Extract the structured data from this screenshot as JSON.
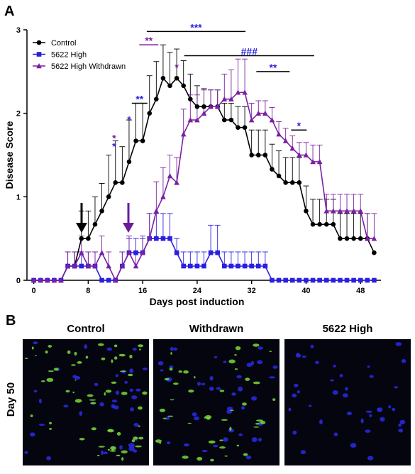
{
  "panel_labels": [
    "A",
    "B"
  ],
  "chart_data": {
    "type": "line",
    "xlabel": "Days post induction",
    "ylabel": "Disease Score",
    "x": [
      0,
      1,
      2,
      3,
      4,
      5,
      6,
      7,
      8,
      9,
      10,
      11,
      12,
      13,
      14,
      15,
      16,
      17,
      18,
      19,
      20,
      21,
      22,
      23,
      24,
      25,
      26,
      27,
      28,
      29,
      30,
      31,
      32,
      33,
      34,
      35,
      36,
      37,
      38,
      39,
      40,
      41,
      42,
      43,
      44,
      45,
      46,
      47,
      48,
      49,
      50
    ],
    "xlim": [
      -1,
      51
    ],
    "xticks": [
      0,
      8,
      16,
      24,
      32,
      40,
      48
    ],
    "ylim": [
      0,
      3
    ],
    "yticks": [
      0,
      1,
      2,
      3
    ],
    "legend": "upper left",
    "series": [
      {
        "name": "Control",
        "color": "#000000",
        "marker": "circle",
        "values": [
          0,
          0,
          0,
          0,
          0,
          0.17,
          0.17,
          0.5,
          0.5,
          0.67,
          0.83,
          1,
          1.17,
          1.17,
          1.42,
          1.67,
          1.67,
          2,
          2.17,
          2.42,
          2.33,
          2.42,
          2.33,
          2.17,
          2.08,
          2.08,
          2.08,
          2.08,
          1.92,
          1.92,
          1.83,
          1.83,
          1.5,
          1.5,
          1.5,
          1.33,
          1.25,
          1.17,
          1.17,
          1.17,
          0.83,
          0.67,
          0.67,
          0.67,
          0.67,
          0.5,
          0.5,
          0.5,
          0.5,
          0.5,
          0.33
        ],
        "errors": [
          0,
          0,
          0,
          0,
          0,
          0.17,
          0.17,
          0.33,
          0.33,
          0.33,
          0.33,
          0.5,
          0.5,
          0.43,
          0.5,
          0.45,
          0.45,
          0.45,
          0.45,
          0.4,
          0.4,
          0.35,
          0.3,
          0.3,
          0.25,
          0.2,
          0.2,
          0.2,
          0.2,
          0.2,
          0.25,
          0.25,
          0.3,
          0.3,
          0.3,
          0.3,
          0.3,
          0.3,
          0.3,
          0.3,
          0.3,
          0.3,
          0.3,
          0.3,
          0.3,
          0.3,
          0.3,
          0.3,
          0.3,
          0.3,
          0
        ]
      },
      {
        "name": "5622 High",
        "color": "#2a1fe0",
        "marker": "square",
        "values": [
          0,
          0,
          0,
          0,
          0,
          0.17,
          0.17,
          0.17,
          0.17,
          0.17,
          0,
          0,
          0,
          0.17,
          0.33,
          0.33,
          0.33,
          0.5,
          0.5,
          0.5,
          0.5,
          0.33,
          0.17,
          0.17,
          0.17,
          0.17,
          0.33,
          0.33,
          0.17,
          0.17,
          0.17,
          0.17,
          0.17,
          0.17,
          0.17,
          0,
          0,
          0,
          0,
          0,
          0,
          0,
          0,
          0,
          0,
          0,
          0,
          0,
          0,
          0,
          0
        ],
        "errors": [
          0,
          0,
          0,
          0,
          0,
          0.17,
          0.17,
          0.17,
          0.17,
          0.17,
          0,
          0,
          0,
          0.17,
          0.17,
          0.17,
          0.17,
          0.3,
          0.3,
          0.3,
          0.3,
          0.17,
          0.17,
          0.17,
          0.17,
          0.17,
          0.33,
          0.33,
          0.17,
          0.17,
          0.17,
          0.17,
          0.17,
          0.17,
          0.17,
          0,
          0,
          0,
          0,
          0,
          0,
          0,
          0,
          0,
          0,
          0,
          0,
          0,
          0,
          0,
          0
        ]
      },
      {
        "name": "5622 High Withdrawn",
        "color": "#7b1fa2",
        "marker": "triangle",
        "values": [
          0,
          0,
          0,
          0,
          0,
          0.17,
          0.17,
          0.33,
          0.17,
          0.17,
          0.33,
          0.17,
          0,
          0.17,
          0.33,
          0.17,
          0.33,
          0.5,
          0.83,
          1,
          1.25,
          1.17,
          1.75,
          1.92,
          1.92,
          2,
          2.08,
          2.08,
          2.17,
          2.17,
          2.25,
          2.25,
          1.92,
          2,
          2,
          1.92,
          1.75,
          1.67,
          1.58,
          1.5,
          1.5,
          1.42,
          1.42,
          0.83,
          0.83,
          0.83,
          0.83,
          0.83,
          0.83,
          0.5,
          0.5
        ],
        "errors": [
          0,
          0,
          0,
          0,
          0,
          0.17,
          0.17,
          0.2,
          0.17,
          0.17,
          0.2,
          0.17,
          0,
          0.17,
          0.2,
          0.17,
          0.2,
          0.3,
          0.35,
          0.35,
          0.25,
          0.3,
          0.3,
          0.3,
          0.3,
          0.3,
          0.2,
          0.2,
          0.3,
          0.35,
          0.4,
          0.4,
          0.2,
          0.15,
          0.15,
          0.15,
          0.15,
          0.15,
          0.15,
          0.15,
          0.15,
          0.2,
          0.2,
          0.2,
          0.2,
          0.2,
          0.2,
          0.2,
          0.2,
          0.3,
          0.3
        ]
      }
    ],
    "annotations": [
      {
        "text": "**",
        "color": "#7b1fa2",
        "bar_color": "#7b1fa2",
        "x": [
          15.5,
          18.3
        ],
        "y": 2.82
      },
      {
        "text": "***",
        "color": "#2a1fe0",
        "bar_color": "#000000",
        "x": [
          16.6,
          31.1
        ],
        "y": 2.98
      },
      {
        "text": "###",
        "color": "#2a1fe0",
        "bar_color": "#000000",
        "x": [
          22.1,
          41.2
        ],
        "y": 2.69
      },
      {
        "text": "**",
        "color": "#2a1fe0",
        "bar_color": "#000000",
        "x": [
          32.7,
          37.6
        ],
        "y": 2.5
      },
      {
        "text": "*",
        "color": "#2a1fe0",
        "bar_color": "#000000",
        "x": [
          37.8,
          40.1
        ],
        "y": 1.8
      },
      {
        "text": "**",
        "color": "#2a1fe0",
        "bar_color": "#000000",
        "x": [
          14.4,
          16.7
        ],
        "y": 2.12
      },
      {
        "text": "*",
        "color": "#2a1fe0",
        "x": 14,
        "y": 1.95
      },
      {
        "text": "*",
        "color": "#7b1fa2",
        "x": 21,
        "y": 2.58
      },
      {
        "text": "*",
        "color": "#7b1fa2",
        "x": 11.8,
        "y": 1.73
      },
      {
        "text": "*",
        "color": "#2a1fe0",
        "x": 11.8,
        "y": 1.63
      }
    ]
  },
  "images": {
    "titles": [
      "Control",
      "Withdrawn",
      "5622 High"
    ],
    "row_label": "Day 50"
  }
}
